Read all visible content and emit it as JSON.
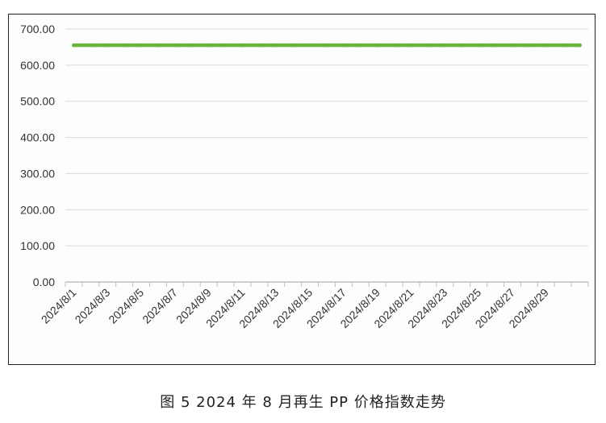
{
  "caption": "图 5  2024 年 8 月再生 PP 价格指数走势",
  "colors": {
    "line": "#6ab43e",
    "grid": "#d9d9d9",
    "axis": "#bfbfbf"
  },
  "chart_data": {
    "type": "line",
    "title": "",
    "xlabel": "",
    "ylabel": "",
    "ylim": [
      0,
      700
    ],
    "y_ticks": [
      "0.00",
      "100.00",
      "200.00",
      "300.00",
      "400.00",
      "500.00",
      "600.00",
      "700.00"
    ],
    "x_tick_labels": [
      "2024/8/1",
      "2024/8/3",
      "2024/8/5",
      "2024/8/7",
      "2024/8/9",
      "2024/8/11",
      "2024/8/13",
      "2024/8/15",
      "2024/8/17",
      "2024/8/19",
      "2024/8/21",
      "2024/8/23",
      "2024/8/25",
      "2024/8/27",
      "2024/8/29"
    ],
    "x": [
      "2024/8/1",
      "2024/8/2",
      "2024/8/3",
      "2024/8/4",
      "2024/8/5",
      "2024/8/6",
      "2024/8/7",
      "2024/8/8",
      "2024/8/9",
      "2024/8/10",
      "2024/8/11",
      "2024/8/12",
      "2024/8/13",
      "2024/8/14",
      "2024/8/15",
      "2024/8/16",
      "2024/8/17",
      "2024/8/18",
      "2024/8/19",
      "2024/8/20",
      "2024/8/21",
      "2024/8/22",
      "2024/8/23",
      "2024/8/24",
      "2024/8/25",
      "2024/8/26",
      "2024/8/27",
      "2024/8/28",
      "2024/8/29",
      "2024/8/30",
      "2024/8/31"
    ],
    "series": [
      {
        "values": [
          655,
          655,
          655,
          655,
          655,
          655,
          655,
          655,
          655,
          655,
          655,
          655,
          655,
          655,
          655,
          655,
          655,
          655,
          655,
          655,
          655,
          655,
          655,
          655,
          655,
          655,
          655,
          655,
          655,
          655,
          655
        ]
      }
    ],
    "grid": true,
    "legend": "none"
  }
}
